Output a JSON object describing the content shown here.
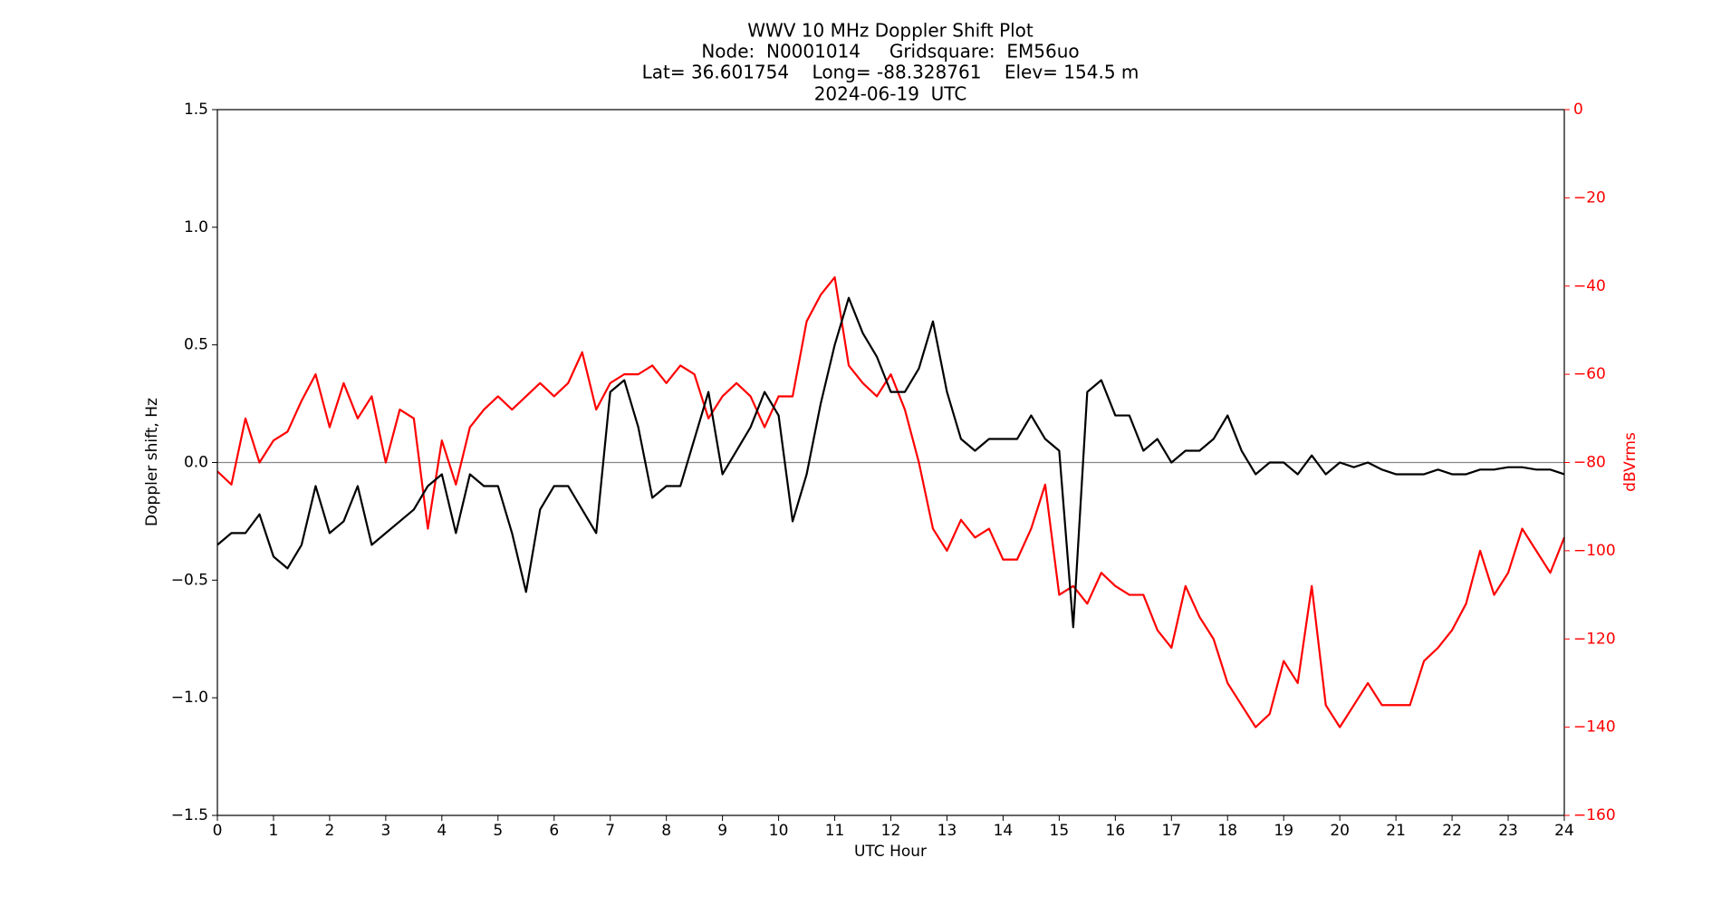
{
  "chart_data": {
    "type": "line",
    "title": [
      "WWV 10 MHz Doppler Shift Plot",
      "Node:  N0001014     Gridsquare:  EM56uo",
      "Lat= 36.601754    Long= -88.328761    Elev= 154.5 m",
      "2024-06-19  UTC"
    ],
    "xlabel": "UTC Hour",
    "ylabel": "Doppler shift, Hz",
    "y2label": "dBVrms",
    "y2color": "#ff0000",
    "xlim": [
      0,
      24
    ],
    "xticks": [
      0,
      1,
      2,
      3,
      4,
      5,
      6,
      7,
      8,
      9,
      10,
      11,
      12,
      13,
      14,
      15,
      16,
      17,
      18,
      19,
      20,
      21,
      22,
      23,
      24
    ],
    "ylim": [
      -1.5,
      1.5
    ],
    "yticks": [
      {
        "value": -1.5,
        "label": "−1.5"
      },
      {
        "value": -1.0,
        "label": "−1.0"
      },
      {
        "value": -0.5,
        "label": "−0.5"
      },
      {
        "value": 0,
        "label": "0.0"
      },
      0.5,
      {
        "value": 1.0,
        "label": "1.0"
      },
      1.5
    ],
    "y2lim": [
      -160,
      0
    ],
    "y2ticks": [
      {
        "value": -160,
        "label": "−160"
      },
      {
        "value": -140,
        "label": "−140"
      },
      {
        "value": -120,
        "label": "−120"
      },
      {
        "value": -100,
        "label": "−100"
      },
      {
        "value": -80,
        "label": "−80"
      },
      {
        "value": -60,
        "label": "−60"
      },
      {
        "value": -40,
        "label": "−40"
      },
      {
        "value": -20,
        "label": "−20"
      },
      0
    ],
    "zero_line": true,
    "x": [
      0,
      0.25,
      0.5,
      0.75,
      1,
      1.25,
      1.5,
      1.75,
      2,
      2.25,
      2.5,
      2.75,
      3,
      3.25,
      3.5,
      3.75,
      4,
      4.25,
      4.5,
      4.75,
      5,
      5.25,
      5.5,
      5.75,
      6,
      6.25,
      6.5,
      6.75,
      7,
      7.25,
      7.5,
      7.75,
      8,
      8.25,
      8.5,
      8.75,
      9,
      9.25,
      9.5,
      9.75,
      10,
      10.25,
      10.5,
      10.75,
      11,
      11.25,
      11.5,
      11.75,
      12,
      12.25,
      12.5,
      12.75,
      13,
      13.25,
      13.5,
      13.75,
      14,
      14.25,
      14.5,
      14.75,
      15,
      15.25,
      15.5,
      15.75,
      16,
      16.25,
      16.5,
      16.75,
      17,
      17.25,
      17.5,
      17.75,
      18,
      18.25,
      18.5,
      18.75,
      19,
      19.25,
      19.5,
      19.75,
      20,
      20.25,
      20.5,
      20.75,
      21,
      21.25,
      21.5,
      21.75,
      22,
      22.25,
      22.5,
      22.75,
      23,
      23.25,
      23.5,
      23.75,
      24
    ],
    "series": [
      {
        "color": "#ff0000",
        "axis": "y2",
        "values": [
          -82,
          -85,
          -70,
          -80,
          -75,
          -73,
          -66,
          -60,
          -72,
          -62,
          -70,
          -65,
          -80,
          -68,
          -70,
          -95,
          -75,
          -85,
          -72,
          -68,
          -65,
          -68,
          -65,
          -62,
          -65,
          -62,
          -55,
          -68,
          -62,
          -60,
          -60,
          -58,
          -62,
          -58,
          -60,
          -70,
          -65,
          -62,
          -65,
          -72,
          -65,
          -65,
          -48,
          -42,
          -38,
          -58,
          -62,
          -65,
          -60,
          -68,
          -80,
          -95,
          -100,
          -93,
          -97,
          -95,
          -102,
          -102,
          -95,
          -85,
          -110,
          -108,
          -112,
          -105,
          -108,
          -110,
          -110,
          -118,
          -122,
          -108,
          -115,
          -120,
          -130,
          -135,
          -140,
          -137,
          -125,
          -130,
          -108,
          -135,
          -140,
          -135,
          -130,
          -135,
          -135,
          -135,
          -125,
          -122,
          -118,
          -112,
          -100,
          -110,
          -105,
          -95,
          -100,
          -105,
          -97
        ]
      },
      {
        "color": "#000000",
        "values": [
          -0.35,
          -0.3,
          -0.3,
          -0.22,
          -0.4,
          -0.45,
          -0.35,
          -0.1,
          -0.3,
          -0.25,
          -0.1,
          -0.35,
          -0.3,
          -0.25,
          -0.2,
          -0.1,
          -0.05,
          -0.3,
          -0.05,
          -0.1,
          -0.1,
          -0.3,
          -0.55,
          -0.2,
          -0.1,
          -0.1,
          -0.2,
          -0.3,
          0.3,
          0.35,
          0.15,
          -0.15,
          -0.1,
          -0.1,
          0.1,
          0.3,
          -0.05,
          0.05,
          0.15,
          0.3,
          0.2,
          -0.25,
          -0.05,
          0.25,
          0.5,
          0.7,
          0.55,
          0.45,
          0.3,
          0.3,
          0.4,
          0.6,
          0.3,
          0.1,
          0.05,
          0.1,
          0.1,
          0.1,
          0.2,
          0.1,
          0.05,
          -0.7,
          0.3,
          0.35,
          0.2,
          0.2,
          0.05,
          0.1,
          0.0,
          0.05,
          0.05,
          0.1,
          0.2,
          0.05,
          -0.05,
          0.0,
          0.0,
          -0.05,
          0.03,
          -0.05,
          0.0,
          -0.02,
          0.0,
          -0.03,
          -0.05,
          -0.05,
          -0.05,
          -0.03,
          -0.05,
          -0.05,
          -0.03,
          -0.03,
          -0.02,
          -0.02,
          -0.03,
          -0.03,
          -0.05
        ]
      }
    ]
  }
}
